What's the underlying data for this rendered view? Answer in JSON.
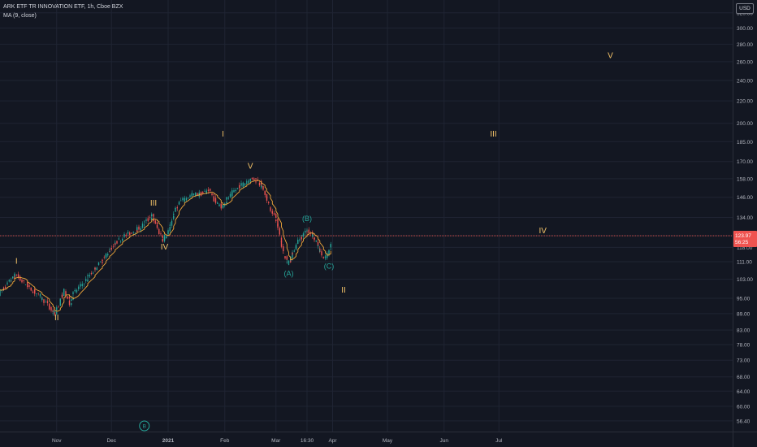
{
  "header": {
    "symbol_line": "ARK ETF TR INNOVATION ETF, 1h, Cboe BZX",
    "indicator_line": "MA (9, close)",
    "currency_button": "USD"
  },
  "price_badge": {
    "price": "123.97",
    "countdown": "56:25"
  },
  "colors": {
    "background": "#131722",
    "grid": "#1f2433",
    "axis_text": "#b2b5be",
    "candle_up": "#26a69a",
    "candle_down": "#ef5350",
    "ma_line": "#f2a93b",
    "wave_label": "#f5c469",
    "corrective_label": "#26a69a",
    "price_line": "#ef5350"
  },
  "chart_data": {
    "type": "line",
    "title": "ARK ETF TR INNOVATION ETF, 1h, Cboe BZX",
    "scale": "log",
    "ylim": [
      55.4,
      331
    ],
    "y_ticks": [
      320.0,
      300.0,
      280.0,
      260.0,
      240.0,
      220.0,
      200.0,
      185.0,
      170.0,
      158.0,
      146.0,
      134.0,
      124.0,
      118.0,
      111.0,
      103.0,
      95.0,
      89.0,
      83.0,
      78.0,
      73.0,
      68.0,
      64.0,
      60.0,
      56.4
    ],
    "x_ticks": [
      {
        "label": "Nov",
        "date": "2020-11-01"
      },
      {
        "label": "Dec",
        "date": "2020-12-01"
      },
      {
        "label": "2021",
        "date": "2021-01-01"
      },
      {
        "label": "Feb",
        "date": "2021-02-01"
      },
      {
        "label": "Mar",
        "date": "2021-03-01"
      },
      {
        "label": "16:30",
        "date": "2021-03-18"
      },
      {
        "label": "Apr",
        "date": "2021-04-01"
      },
      {
        "label": "May",
        "date": "2021-05-01"
      },
      {
        "label": "Jun",
        "date": "2021-06-01"
      },
      {
        "label": "Jul",
        "date": "2021-07-01"
      }
    ],
    "xlim": [
      "2020-10-01",
      "2021-08-05"
    ],
    "series": [
      {
        "points": [
          [
            "2020-10-01",
            97
          ],
          [
            "2020-10-05",
            100
          ],
          [
            "2020-10-08",
            103
          ],
          [
            "2020-10-10",
            105
          ],
          [
            "2020-10-14",
            102
          ],
          [
            "2020-10-18",
            99
          ],
          [
            "2020-10-22",
            97
          ],
          [
            "2020-10-26",
            94
          ],
          [
            "2020-10-30",
            90
          ],
          [
            "2020-11-01",
            89
          ],
          [
            "2020-11-04",
            95
          ],
          [
            "2020-11-06",
            98
          ],
          [
            "2020-11-09",
            93
          ],
          [
            "2020-11-11",
            97
          ],
          [
            "2020-11-16",
            101
          ],
          [
            "2020-11-20",
            105
          ],
          [
            "2020-11-24",
            109
          ],
          [
            "2020-11-28",
            113
          ],
          [
            "2020-12-01",
            117
          ],
          [
            "2020-12-05",
            121
          ],
          [
            "2020-12-09",
            124
          ],
          [
            "2020-12-13",
            126
          ],
          [
            "2020-12-17",
            128
          ],
          [
            "2020-12-21",
            132
          ],
          [
            "2020-12-24",
            135
          ],
          [
            "2020-12-27",
            128
          ],
          [
            "2020-12-30",
            122
          ],
          [
            "2021-01-02",
            126
          ],
          [
            "2021-01-05",
            137
          ],
          [
            "2021-01-08",
            143
          ],
          [
            "2021-01-12",
            146
          ],
          [
            "2021-01-16",
            148
          ],
          [
            "2021-01-20",
            148
          ],
          [
            "2021-01-24",
            151
          ],
          [
            "2021-01-28",
            143
          ],
          [
            "2021-01-31",
            140
          ],
          [
            "2021-02-03",
            145
          ],
          [
            "2021-02-07",
            150
          ],
          [
            "2021-02-11",
            154
          ],
          [
            "2021-02-15",
            157
          ],
          [
            "2021-02-18",
            158
          ],
          [
            "2021-02-21",
            155
          ],
          [
            "2021-02-24",
            147
          ],
          [
            "2021-02-27",
            138
          ],
          [
            "2021-03-02",
            133
          ],
          [
            "2021-03-05",
            118
          ],
          [
            "2021-03-08",
            110
          ],
          [
            "2021-03-10",
            113
          ],
          [
            "2021-03-13",
            120
          ],
          [
            "2021-03-16",
            124
          ],
          [
            "2021-03-19",
            127
          ],
          [
            "2021-03-22",
            124
          ],
          [
            "2021-03-25",
            118
          ],
          [
            "2021-03-28",
            112
          ],
          [
            "2021-03-30",
            115
          ],
          [
            "2021-04-01",
            120
          ]
        ]
      }
    ],
    "last_price": 123.97,
    "annotations": [
      {
        "text": "I",
        "date": "2020-10-10",
        "price": 110
      },
      {
        "text": "II",
        "date": "2020-11-01",
        "price": 86.5
      },
      {
        "text": "III",
        "date": "2020-12-24",
        "price": 141
      },
      {
        "text": "IV",
        "date": "2020-12-30",
        "price": 117
      },
      {
        "text": "V",
        "date": "2021-02-15",
        "price": 165
      },
      {
        "text": "I",
        "date": "2021-01-31",
        "price": 189
      },
      {
        "text": "(A)",
        "date": "2021-03-08",
        "price": 104.5
      },
      {
        "text": "(B)",
        "date": "2021-03-18",
        "price": 132
      },
      {
        "text": "(C)",
        "date": "2021-03-30",
        "price": 107.8
      },
      {
        "text": "II",
        "date": "2021-04-07",
        "price": 97.3
      },
      {
        "text": "III",
        "date": "2021-06-28",
        "price": 189
      },
      {
        "text": "IV",
        "date": "2021-07-25",
        "price": 125.2
      },
      {
        "text": "V",
        "date": "2021-08-31",
        "price": 264
      }
    ],
    "bottom_marker": "B"
  }
}
